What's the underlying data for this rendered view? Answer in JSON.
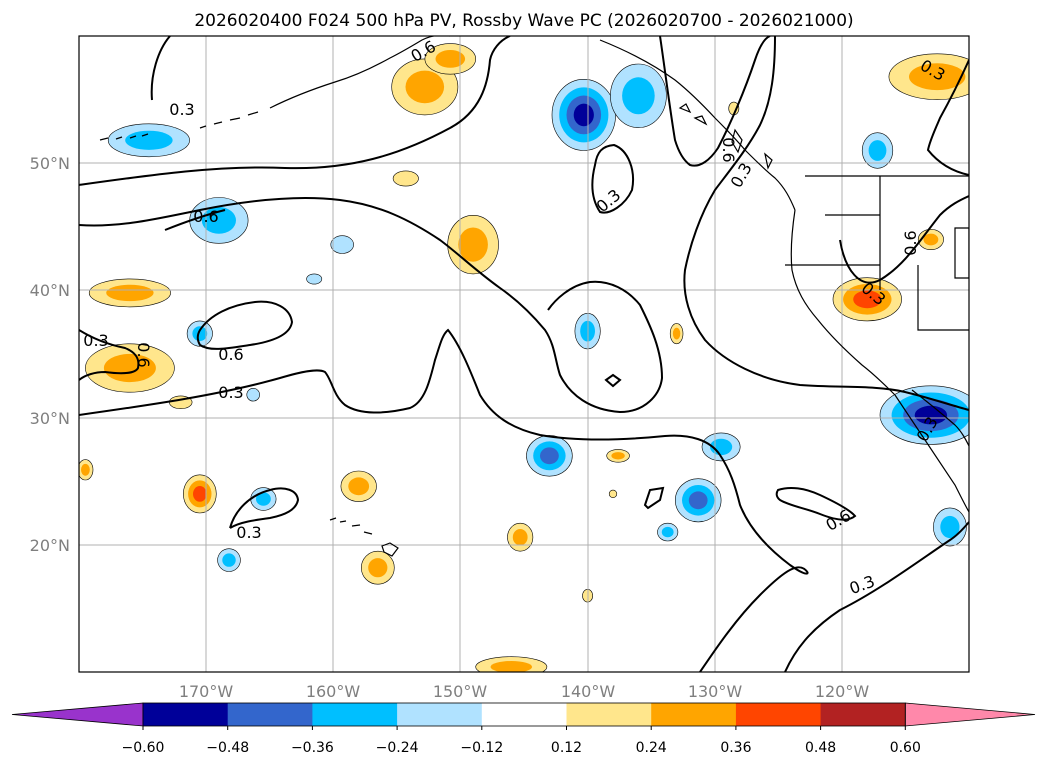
{
  "title": "2026020400 F024 500 hPa PV, Rossby Wave PC (2026020700 - 2026021000)",
  "map": {
    "projection": "plate-carree",
    "lon_range": [
      -180,
      -110
    ],
    "lat_range": [
      10,
      60
    ],
    "lat_gridlines": [
      20,
      30,
      40,
      50
    ],
    "lon_gridlines": [
      -170,
      -160,
      -150,
      -140,
      -130,
      -120
    ],
    "lat_labels": [
      "20°N",
      "30°N",
      "40°N",
      "50°N"
    ],
    "lon_labels": [
      "170°W",
      "160°W",
      "150°W",
      "140°W",
      "130°W",
      "120°W"
    ]
  },
  "contour_labels": [
    "0.3",
    "0.6",
    "0.6",
    "0.3",
    "0.6",
    "0.6",
    "0.3",
    "0.6",
    "0.3",
    "0.3",
    "0.6",
    "0.3",
    "0.3",
    "0.3",
    "0.3",
    "0.6",
    "0.3"
  ],
  "anomaly_features": [
    {
      "lon": -174.5,
      "lat": 51.8,
      "rx": 3.2,
      "ry": 1.3,
      "value": -0.3
    },
    {
      "lon": -169.0,
      "lat": 45.5,
      "rx": 2.3,
      "ry": 1.8,
      "value": -0.3
    },
    {
      "lon": -159.3,
      "lat": 43.6,
      "rx": 0.9,
      "ry": 0.7,
      "value": -0.2
    },
    {
      "lon": -161.5,
      "lat": 40.9,
      "rx": 0.6,
      "ry": 0.4,
      "value": -0.15
    },
    {
      "lon": -170.5,
      "lat": 36.6,
      "rx": 1.0,
      "ry": 1.0,
      "value": -0.28
    },
    {
      "lon": -166.3,
      "lat": 31.8,
      "rx": 0.5,
      "ry": 0.5,
      "value": -0.13
    },
    {
      "lon": -165.5,
      "lat": 23.6,
      "rx": 1.0,
      "ry": 0.9,
      "value": -0.3
    },
    {
      "lon": -168.2,
      "lat": 18.8,
      "rx": 0.9,
      "ry": 0.9,
      "value": -0.26
    },
    {
      "lon": -140.3,
      "lat": 53.8,
      "rx": 2.5,
      "ry": 2.8,
      "value": -0.5
    },
    {
      "lon": -136.0,
      "lat": 55.3,
      "rx": 2.2,
      "ry": 2.5,
      "value": -0.34
    },
    {
      "lon": -140.0,
      "lat": 36.8,
      "rx": 1.0,
      "ry": 1.4,
      "value": -0.3
    },
    {
      "lon": -143.0,
      "lat": 27.0,
      "rx": 1.8,
      "ry": 1.6,
      "value": -0.42
    },
    {
      "lon": -131.3,
      "lat": 23.5,
      "rx": 1.8,
      "ry": 1.7,
      "value": -0.44
    },
    {
      "lon": -129.5,
      "lat": 27.7,
      "rx": 1.5,
      "ry": 1.1,
      "value": -0.32
    },
    {
      "lon": -133.7,
      "lat": 21.0,
      "rx": 0.8,
      "ry": 0.7,
      "value": -0.28
    },
    {
      "lon": -117.2,
      "lat": 51.0,
      "rx": 1.2,
      "ry": 1.4,
      "value": -0.3
    },
    {
      "lon": -113.0,
      "lat": 30.2,
      "rx": 4.0,
      "ry": 2.3,
      "value": -0.55
    },
    {
      "lon": -111.5,
      "lat": 21.4,
      "rx": 1.3,
      "ry": 1.5,
      "value": -0.3
    },
    {
      "lon": -152.8,
      "lat": 56.0,
      "rx": 2.6,
      "ry": 2.2,
      "value": 0.33
    },
    {
      "lon": -150.8,
      "lat": 58.2,
      "rx": 2.0,
      "ry": 1.2,
      "value": 0.24
    },
    {
      "lon": -149.0,
      "lat": 43.6,
      "rx": 2.0,
      "ry": 2.3,
      "value": 0.3
    },
    {
      "lon": -154.3,
      "lat": 48.8,
      "rx": 1.0,
      "ry": 0.6,
      "value": 0.22
    },
    {
      "lon": -176.0,
      "lat": 39.8,
      "rx": 3.2,
      "ry": 1.1,
      "value": 0.3
    },
    {
      "lon": -176.0,
      "lat": 33.9,
      "rx": 3.5,
      "ry": 1.9,
      "value": 0.32
    },
    {
      "lon": -179.5,
      "lat": 25.9,
      "rx": 0.6,
      "ry": 0.8,
      "value": 0.28
    },
    {
      "lon": -172.0,
      "lat": 31.2,
      "rx": 0.9,
      "ry": 0.5,
      "value": 0.14
    },
    {
      "lon": -170.5,
      "lat": 24.0,
      "rx": 1.3,
      "ry": 1.5,
      "value": 0.42
    },
    {
      "lon": -158.0,
      "lat": 24.6,
      "rx": 1.4,
      "ry": 1.2,
      "value": 0.3
    },
    {
      "lon": -156.5,
      "lat": 18.2,
      "rx": 1.3,
      "ry": 1.3,
      "value": 0.3
    },
    {
      "lon": -145.3,
      "lat": 20.6,
      "rx": 1.0,
      "ry": 1.1,
      "value": 0.28
    },
    {
      "lon": -146.0,
      "lat": 10.4,
      "rx": 2.8,
      "ry": 0.8,
      "value": 0.3
    },
    {
      "lon": -137.6,
      "lat": 27.0,
      "rx": 0.9,
      "ry": 0.5,
      "value": 0.28
    },
    {
      "lon": -138.0,
      "lat": 24.0,
      "rx": 0.3,
      "ry": 0.3,
      "value": 0.14
    },
    {
      "lon": -140.0,
      "lat": 16.0,
      "rx": 0.4,
      "ry": 0.5,
      "value": 0.14
    },
    {
      "lon": -133.0,
      "lat": 36.6,
      "rx": 0.5,
      "ry": 0.8,
      "value": 0.28
    },
    {
      "lon": -118.0,
      "lat": 39.3,
      "rx": 2.7,
      "ry": 1.7,
      "value": 0.38
    },
    {
      "lon": -112.5,
      "lat": 56.8,
      "rx": 3.8,
      "ry": 1.8,
      "value": 0.34
    },
    {
      "lon": -113.0,
      "lat": 44.0,
      "rx": 1.0,
      "ry": 0.8,
      "value": 0.28
    },
    {
      "lon": -128.5,
      "lat": 54.3,
      "rx": 0.4,
      "ry": 0.5,
      "value": 0.14
    }
  ],
  "colorbar": {
    "levels": [
      -0.6,
      -0.48,
      -0.36,
      -0.24,
      -0.12,
      0.12,
      0.24,
      0.36,
      0.48,
      0.6
    ],
    "tick_labels": [
      "−0.60",
      "−0.48",
      "−0.36",
      "−0.24",
      "−0.12",
      "0.12",
      "0.24",
      "0.36",
      "0.48",
      "0.60"
    ],
    "colors": [
      "#9933cc",
      "#000099",
      "#3366cc",
      "#00bfff",
      "#b0e2ff",
      "#ffffff",
      "#ffe68c",
      "#ffa500",
      "#ff4500",
      "#b22222",
      "#ff88aa"
    ],
    "extend": "both"
  }
}
